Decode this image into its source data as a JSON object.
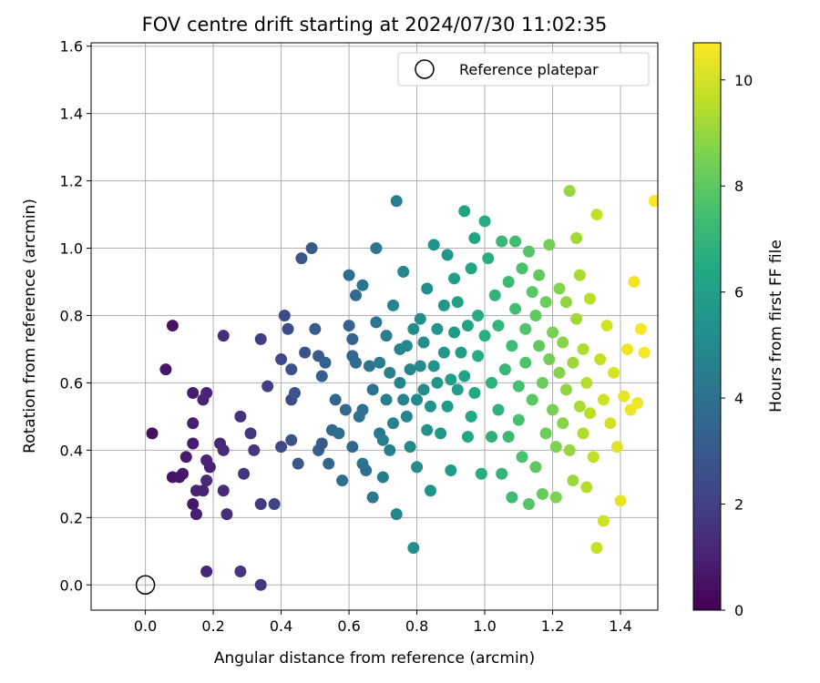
{
  "chart_data": {
    "type": "scatter",
    "title": "FOV centre drift starting at 2024/07/30 11:02:35",
    "xlabel": "Angular distance from reference (arcmin)",
    "ylabel": "Rotation from reference (arcmin)",
    "xlim": [
      -0.16,
      1.51
    ],
    "ylim": [
      -0.075,
      1.61
    ],
    "xticks": [
      "0.0",
      "0.2",
      "0.4",
      "0.6",
      "0.8",
      "1.0",
      "1.2",
      "1.4"
    ],
    "yticks": [
      "0.0",
      "0.2",
      "0.4",
      "0.6",
      "0.8",
      "1.0",
      "1.2",
      "1.4",
      "1.6"
    ],
    "grid": true,
    "legend": {
      "position": "upper-right",
      "entries": [
        "Reference platepar"
      ]
    },
    "reference_point": {
      "x": 0.0,
      "y": 0.0,
      "marker": "open-circle"
    },
    "colorbar": {
      "label": "Hours from first FF file",
      "colormap": "viridis",
      "range": [
        0,
        10.7
      ],
      "ticks": [
        "0",
        "2",
        "4",
        "6",
        "8",
        "10"
      ]
    },
    "series": [
      {
        "points": [
          [
            0.02,
            0.45,
            0.5
          ],
          [
            0.06,
            0.64,
            0.6
          ],
          [
            0.08,
            0.77,
            0.5
          ],
          [
            0.08,
            0.32,
            0.6
          ],
          [
            0.1,
            0.32,
            0.6
          ],
          [
            0.11,
            0.33,
            0.7
          ],
          [
            0.12,
            0.38,
            0.8
          ],
          [
            0.14,
            0.57,
            0.8
          ],
          [
            0.14,
            0.48,
            0.9
          ],
          [
            0.14,
            0.42,
            0.8
          ],
          [
            0.14,
            0.24,
            0.7
          ],
          [
            0.15,
            0.21,
            0.9
          ],
          [
            0.15,
            0.28,
            1.0
          ],
          [
            0.17,
            0.28,
            1.0
          ],
          [
            0.17,
            0.55,
            1.0
          ],
          [
            0.18,
            0.57,
            1.1
          ],
          [
            0.18,
            0.37,
            1.1
          ],
          [
            0.18,
            0.31,
            1.2
          ],
          [
            0.19,
            0.35,
            1.0
          ],
          [
            0.18,
            0.04,
            1.2
          ],
          [
            0.22,
            0.42,
            1.2
          ],
          [
            0.23,
            0.4,
            1.3
          ],
          [
            0.23,
            0.28,
            1.3
          ],
          [
            0.23,
            0.74,
            1.4
          ],
          [
            0.24,
            0.21,
            1.4
          ],
          [
            0.28,
            0.5,
            1.5
          ],
          [
            0.29,
            0.33,
            1.6
          ],
          [
            0.31,
            0.45,
            1.6
          ],
          [
            0.32,
            0.4,
            1.7
          ],
          [
            0.28,
            0.04,
            1.6
          ],
          [
            0.34,
            0.24,
            1.8
          ],
          [
            0.34,
            0.73,
            1.9
          ],
          [
            0.34,
            0.0,
            1.7
          ],
          [
            0.36,
            0.59,
            2.0
          ],
          [
            0.38,
            0.24,
            2.1
          ],
          [
            0.4,
            0.67,
            2.2
          ],
          [
            0.4,
            0.41,
            2.3
          ],
          [
            0.41,
            0.8,
            2.4
          ],
          [
            0.42,
            0.76,
            2.5
          ],
          [
            0.43,
            0.55,
            2.4
          ],
          [
            0.43,
            0.64,
            2.6
          ],
          [
            0.43,
            0.43,
            2.7
          ],
          [
            0.44,
            0.57,
            2.8
          ],
          [
            0.45,
            0.36,
            2.9
          ],
          [
            0.46,
            0.97,
            2.8
          ],
          [
            0.47,
            0.69,
            2.7
          ],
          [
            0.49,
            1.0,
            3.0
          ],
          [
            0.5,
            0.76,
            3.1
          ],
          [
            0.51,
            0.68,
            3.0
          ],
          [
            0.51,
            0.4,
            3.2
          ],
          [
            0.52,
            0.42,
            3.0
          ],
          [
            0.52,
            0.62,
            3.2
          ],
          [
            0.53,
            0.66,
            3.4
          ],
          [
            0.54,
            0.36,
            3.5
          ],
          [
            0.55,
            0.46,
            3.6
          ],
          [
            0.56,
            0.55,
            3.5
          ],
          [
            0.57,
            0.45,
            3.8
          ],
          [
            0.58,
            0.31,
            3.9
          ],
          [
            0.59,
            0.52,
            3.7
          ],
          [
            0.6,
            0.92,
            3.8
          ],
          [
            0.6,
            0.77,
            3.3
          ],
          [
            0.61,
            0.68,
            3.5
          ],
          [
            0.61,
            0.73,
            3.4
          ],
          [
            0.61,
            0.41,
            3.6
          ],
          [
            0.62,
            0.86,
            3.7
          ],
          [
            0.62,
            0.66,
            3.8
          ],
          [
            0.63,
            0.5,
            4.0
          ],
          [
            0.64,
            0.52,
            4.0
          ],
          [
            0.64,
            0.36,
            4.1
          ],
          [
            0.64,
            0.89,
            4.2
          ],
          [
            0.65,
            0.34,
            3.9
          ],
          [
            0.66,
            0.65,
            4.2
          ],
          [
            0.67,
            0.26,
            4.3
          ],
          [
            0.67,
            0.58,
            4.1
          ],
          [
            0.68,
            0.78,
            4.2
          ],
          [
            0.68,
            1.0,
            4.3
          ],
          [
            0.69,
            0.45,
            4.3
          ],
          [
            0.69,
            0.66,
            4.4
          ],
          [
            0.7,
            0.43,
            4.5
          ],
          [
            0.7,
            0.32,
            4.4
          ],
          [
            0.71,
            0.74,
            4.5
          ],
          [
            0.71,
            0.55,
            4.6
          ],
          [
            0.72,
            0.4,
            4.6
          ],
          [
            0.72,
            0.63,
            4.7
          ],
          [
            0.73,
            0.83,
            4.8
          ],
          [
            0.73,
            0.48,
            4.7
          ],
          [
            0.74,
            0.21,
            4.9
          ],
          [
            0.74,
            1.14,
            4.5
          ],
          [
            0.75,
            0.6,
            4.8
          ],
          [
            0.75,
            0.7,
            4.7
          ],
          [
            0.76,
            0.93,
            4.9
          ],
          [
            0.76,
            0.55,
            4.7
          ],
          [
            0.77,
            0.5,
            4.9
          ],
          [
            0.77,
            0.71,
            5.0
          ],
          [
            0.78,
            0.41,
            5.0
          ],
          [
            0.78,
            0.64,
            4.9
          ],
          [
            0.79,
            0.76,
            5.1
          ],
          [
            0.79,
            0.11,
            5.3
          ],
          [
            0.8,
            0.55,
            5.0
          ],
          [
            0.8,
            0.35,
            5.2
          ],
          [
            0.81,
            0.65,
            5.1
          ],
          [
            0.81,
            0.79,
            5.2
          ],
          [
            0.82,
            0.58,
            5.2
          ],
          [
            0.82,
            0.72,
            5.3
          ],
          [
            0.83,
            0.46,
            5.4
          ],
          [
            0.83,
            0.88,
            5.3
          ],
          [
            0.84,
            0.53,
            5.4
          ],
          [
            0.84,
            0.28,
            5.5
          ],
          [
            0.85,
            0.65,
            5.4
          ],
          [
            0.85,
            1.01,
            5.5
          ],
          [
            0.86,
            0.76,
            5.5
          ],
          [
            0.86,
            0.6,
            5.6
          ],
          [
            0.87,
            0.45,
            5.7
          ],
          [
            0.88,
            0.69,
            5.6
          ],
          [
            0.88,
            0.83,
            5.7
          ],
          [
            0.89,
            0.98,
            5.6
          ],
          [
            0.89,
            0.53,
            5.8
          ],
          [
            0.9,
            0.34,
            5.8
          ],
          [
            0.9,
            0.61,
            5.9
          ],
          [
            0.91,
            0.75,
            5.8
          ],
          [
            0.91,
            0.91,
            6.0
          ],
          [
            0.92,
            0.58,
            5.9
          ],
          [
            0.92,
            0.84,
            6.1
          ],
          [
            0.93,
            0.69,
            6.0
          ],
          [
            0.94,
            0.62,
            6.2
          ],
          [
            0.94,
            1.11,
            6.1
          ],
          [
            0.95,
            0.44,
            6.3
          ],
          [
            0.95,
            0.77,
            6.2
          ],
          [
            0.96,
            0.94,
            6.3
          ],
          [
            0.96,
            0.5,
            6.4
          ],
          [
            0.97,
            1.03,
            6.2
          ],
          [
            0.97,
            0.57,
            6.4
          ],
          [
            0.98,
            0.8,
            6.5
          ],
          [
            0.98,
            0.68,
            6.5
          ],
          [
            0.99,
            0.33,
            6.6
          ],
          [
            1.0,
            1.08,
            6.6
          ],
          [
            1.0,
            0.74,
            6.7
          ],
          [
            1.01,
            0.97,
            6.7
          ],
          [
            1.02,
            0.44,
            6.8
          ],
          [
            1.02,
            0.6,
            6.8
          ],
          [
            1.03,
            0.86,
            6.9
          ],
          [
            1.04,
            0.52,
            6.9
          ],
          [
            1.04,
            0.77,
            7.0
          ],
          [
            1.05,
            0.33,
            7.0
          ],
          [
            1.05,
            1.02,
            7.1
          ],
          [
            1.06,
            0.64,
            7.1
          ],
          [
            1.07,
            0.9,
            7.2
          ],
          [
            1.07,
            0.44,
            7.2
          ],
          [
            1.08,
            0.71,
            7.3
          ],
          [
            1.08,
            0.26,
            7.3
          ],
          [
            1.09,
            0.82,
            7.4
          ],
          [
            1.09,
            1.02,
            7.4
          ],
          [
            1.1,
            0.59,
            7.5
          ],
          [
            1.1,
            0.49,
            7.5
          ],
          [
            1.11,
            0.94,
            7.6
          ],
          [
            1.11,
            0.38,
            7.6
          ],
          [
            1.12,
            0.76,
            7.7
          ],
          [
            1.12,
            0.66,
            7.7
          ],
          [
            1.13,
            0.99,
            7.8
          ],
          [
            1.13,
            0.24,
            7.8
          ],
          [
            1.14,
            0.87,
            7.9
          ],
          [
            1.14,
            0.55,
            7.9
          ],
          [
            1.15,
            0.8,
            8.0
          ],
          [
            1.15,
            0.35,
            8.0
          ],
          [
            1.16,
            0.71,
            8.1
          ],
          [
            1.16,
            0.92,
            8.1
          ],
          [
            1.17,
            0.6,
            8.2
          ],
          [
            1.17,
            0.27,
            8.2
          ],
          [
            1.18,
            0.84,
            8.3
          ],
          [
            1.18,
            0.45,
            8.3
          ],
          [
            1.19,
            0.67,
            8.4
          ],
          [
            1.19,
            1.01,
            8.4
          ],
          [
            1.2,
            0.52,
            8.5
          ],
          [
            1.2,
            0.75,
            8.5
          ],
          [
            1.21,
            0.41,
            8.6
          ],
          [
            1.21,
            0.26,
            8.6
          ],
          [
            1.22,
            0.63,
            8.7
          ],
          [
            1.22,
            0.88,
            8.7
          ],
          [
            1.23,
            0.48,
            8.8
          ],
          [
            1.23,
            0.72,
            8.8
          ],
          [
            1.24,
            0.58,
            8.9
          ],
          [
            1.24,
            0.84,
            8.9
          ],
          [
            1.25,
            0.4,
            9.0
          ],
          [
            1.25,
            1.17,
            9.0
          ],
          [
            1.26,
            0.66,
            9.1
          ],
          [
            1.26,
            0.31,
            9.1
          ],
          [
            1.27,
            0.79,
            9.2
          ],
          [
            1.27,
            1.03,
            9.2
          ],
          [
            1.28,
            0.53,
            9.3
          ],
          [
            1.28,
            0.92,
            9.3
          ],
          [
            1.29,
            0.45,
            9.4
          ],
          [
            1.29,
            0.7,
            9.4
          ],
          [
            1.3,
            0.6,
            9.5
          ],
          [
            1.3,
            0.29,
            9.5
          ],
          [
            1.31,
            0.85,
            9.6
          ],
          [
            1.31,
            0.51,
            9.6
          ],
          [
            1.32,
            0.38,
            9.7
          ],
          [
            1.33,
            1.1,
            9.7
          ],
          [
            1.33,
            0.11,
            9.8
          ],
          [
            1.34,
            0.67,
            9.8
          ],
          [
            1.35,
            0.19,
            9.9
          ],
          [
            1.35,
            0.55,
            9.9
          ],
          [
            1.36,
            0.77,
            10.0
          ],
          [
            1.37,
            0.48,
            10.0
          ],
          [
            1.38,
            0.63,
            10.1
          ],
          [
            1.39,
            0.41,
            10.2
          ],
          [
            1.4,
            0.25,
            10.3
          ],
          [
            1.41,
            0.56,
            10.3
          ],
          [
            1.42,
            0.7,
            10.4
          ],
          [
            1.43,
            0.52,
            10.4
          ],
          [
            1.44,
            0.9,
            10.5
          ],
          [
            1.45,
            0.54,
            10.5
          ],
          [
            1.46,
            0.76,
            10.6
          ],
          [
            1.47,
            0.69,
            10.6
          ],
          [
            1.5,
            1.14,
            10.7
          ]
        ]
      }
    ]
  }
}
